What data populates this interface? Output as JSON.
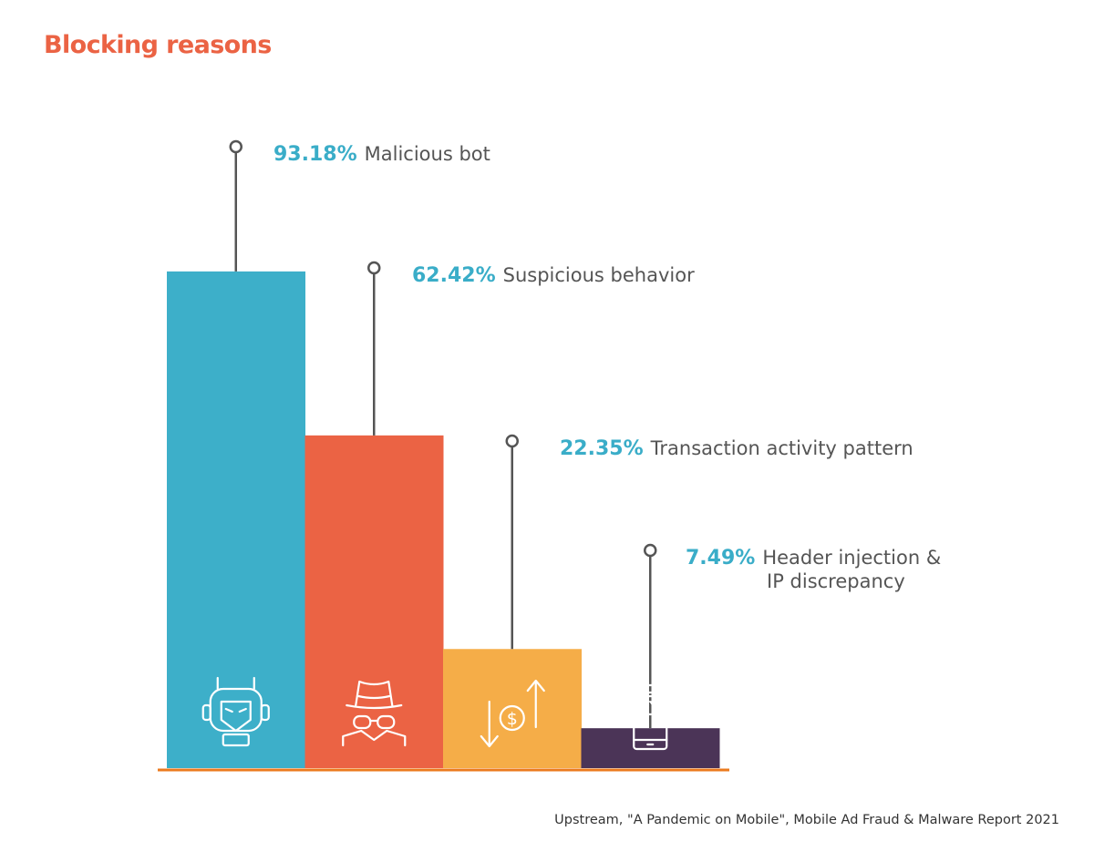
{
  "title": "Blocking reasons",
  "source": "Upstream, \"A Pandemic on Mobile\", Mobile Ad Fraud & Malware Report 2021",
  "colors": {
    "title": "#EB6344",
    "percent": "#3AADC8",
    "label": "#555555",
    "baseline": "#EB7A1E",
    "stem": "#555555"
  },
  "chart_data": {
    "type": "bar",
    "title": "Blocking reasons",
    "xlabel": "",
    "ylabel": "",
    "ylim": [
      0,
      100
    ],
    "grid": false,
    "categories": [
      "Malicious bot",
      "Suspicious behavior",
      "Transaction activity pattern",
      "Header injection & IP discrepancy"
    ],
    "values": [
      93.18,
      62.42,
      22.35,
      7.49
    ],
    "bars": [
      {
        "value": 93.18,
        "percent_label": "93.18%",
        "label_lines": [
          "Malicious bot"
        ],
        "color": "#3DAFC9",
        "icon": "robot-icon"
      },
      {
        "value": 62.42,
        "percent_label": "62.42%",
        "label_lines": [
          "Suspicious behavior"
        ],
        "color": "#EB6344",
        "icon": "spy-icon"
      },
      {
        "value": 22.35,
        "percent_label": "22.35%",
        "label_lines": [
          "Transaction activity pattern"
        ],
        "color": "#F5AD48",
        "icon": "transaction-icon"
      },
      {
        "value": 7.49,
        "percent_label": "7.49%",
        "label_lines": [
          "Header injection &",
          "IP discrepancy"
        ],
        "color": "#4B3457",
        "icon": "phone-search-icon"
      }
    ]
  }
}
